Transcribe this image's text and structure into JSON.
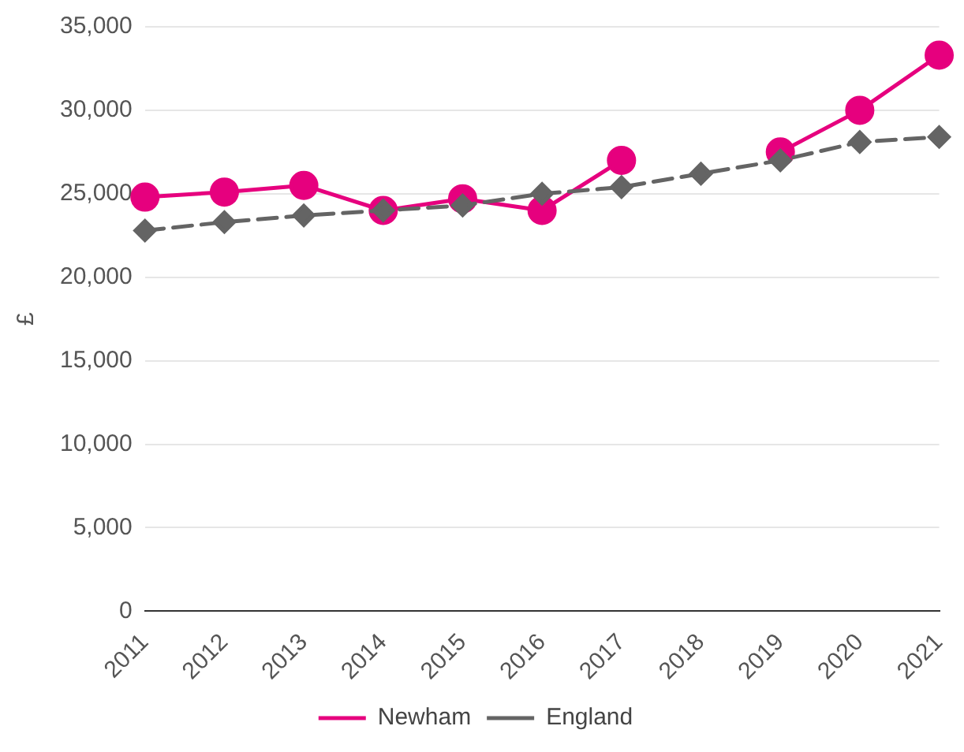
{
  "chart_data": {
    "type": "line",
    "ylabel": "£",
    "categories": [
      "2011",
      "2012",
      "2013",
      "2014",
      "2015",
      "2016",
      "2017",
      "2018",
      "2019",
      "2020",
      "2021"
    ],
    "series": [
      {
        "name": "Newham",
        "color": "#e6007e",
        "marker": "circle",
        "line_style": "solid",
        "values": [
          24800,
          25100,
          25500,
          24000,
          24700,
          24000,
          27000,
          null,
          27500,
          30000,
          33300
        ]
      },
      {
        "name": "England",
        "color": "#646464",
        "marker": "diamond",
        "line_style": "dashed",
        "values": [
          22800,
          23300,
          23700,
          24000,
          24300,
          25000,
          25400,
          26200,
          27000,
          28100,
          28400
        ]
      }
    ],
    "ylim": [
      0,
      35000
    ],
    "yticks": [
      0,
      {
        "value": 5000,
        "label": "5,000"
      },
      {
        "value": 10000,
        "label": "10,000"
      },
      {
        "value": 15000,
        "label": "15,000"
      },
      {
        "value": 20000,
        "label": "20,000"
      },
      {
        "value": 25000,
        "label": "25,000"
      },
      {
        "value": 30000,
        "label": "30,000"
      },
      {
        "value": 35000,
        "label": "35,000"
      }
    ],
    "grid": "y",
    "legend": "bottom"
  }
}
